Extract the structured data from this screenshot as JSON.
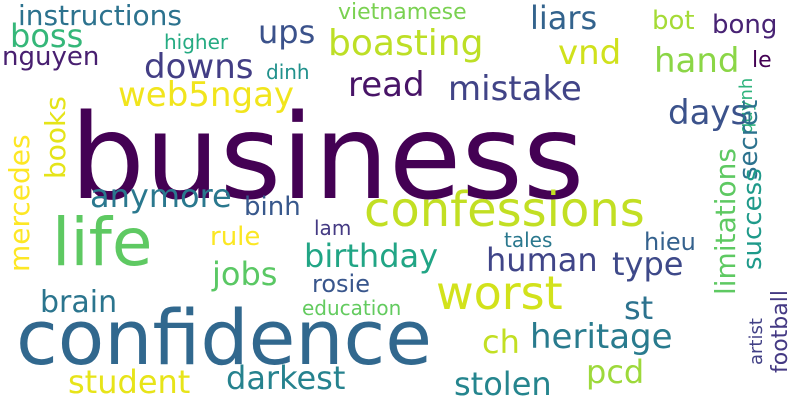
{
  "words": [
    {
      "text": "business",
      "color": "#440154"
    },
    {
      "text": "confidence",
      "color": "#31688e"
    },
    {
      "text": "life",
      "color": "#5ec962"
    },
    {
      "text": "confessions",
      "color": "#c2df23"
    },
    {
      "text": "worst",
      "color": "#d2e21b"
    },
    {
      "text": "instructions",
      "color": "#2c728e"
    },
    {
      "text": "boss",
      "color": "#35b779"
    },
    {
      "text": "vietnamese",
      "color": "#7ad151"
    },
    {
      "text": "liars",
      "color": "#33638d"
    },
    {
      "text": "bot",
      "color": "#a5db36"
    },
    {
      "text": "bong",
      "color": "#482374"
    },
    {
      "text": "ups",
      "color": "#3b528b"
    },
    {
      "text": "boasting",
      "color": "#bddf26"
    },
    {
      "text": "higher",
      "color": "#25ab82"
    },
    {
      "text": "nguyen",
      "color": "#481f70"
    },
    {
      "text": "vnd",
      "color": "#d0e11c"
    },
    {
      "text": "hand",
      "color": "#8bd646"
    },
    {
      "text": "le",
      "color": "#440154"
    },
    {
      "text": "downs",
      "color": "#433e85"
    },
    {
      "text": "dinh",
      "color": "#21918c"
    },
    {
      "text": "web5ngay",
      "color": "#f1e51d"
    },
    {
      "text": "read",
      "color": "#481467"
    },
    {
      "text": "mistake",
      "color": "#414487"
    },
    {
      "text": "quynh",
      "color": "#2eb37c"
    },
    {
      "text": "days",
      "color": "#3b528b"
    },
    {
      "text": "secret",
      "color": "#2c728e"
    },
    {
      "text": "books",
      "color": "#e5e419"
    },
    {
      "text": "mercedes",
      "color": "#fde725"
    },
    {
      "text": "anymore",
      "color": "#2a788e"
    },
    {
      "text": "binh",
      "color": "#38588c"
    },
    {
      "text": "limitations",
      "color": "#5ec962"
    },
    {
      "text": "success",
      "color": "#1f9a8a"
    },
    {
      "text": "rule",
      "color": "#fbe723"
    },
    {
      "text": "lam",
      "color": "#443a83"
    },
    {
      "text": "birthday",
      "color": "#21a585"
    },
    {
      "text": "human",
      "color": "#404588"
    },
    {
      "text": "type",
      "color": "#3e4989"
    },
    {
      "text": "tales",
      "color": "#2a788e"
    },
    {
      "text": "hieu",
      "color": "#34618d"
    },
    {
      "text": "jobs",
      "color": "#5ac864"
    },
    {
      "text": "rosie",
      "color": "#39568c"
    },
    {
      "text": "brain",
      "color": "#2b758e"
    },
    {
      "text": "st",
      "color": "#2c728e"
    },
    {
      "text": "football",
      "color": "#443983"
    },
    {
      "text": "education",
      "color": "#63cb5f"
    },
    {
      "text": "artist",
      "color": "#424186"
    },
    {
      "text": "ch",
      "color": "#c2df23"
    },
    {
      "text": "heritage",
      "color": "#297b8e"
    },
    {
      "text": "student",
      "color": "#e7e419"
    },
    {
      "text": "darkest",
      "color": "#26828e"
    },
    {
      "text": "stolen",
      "color": "#25858e"
    },
    {
      "text": "pcd",
      "color": "#9dd93b"
    }
  ]
}
